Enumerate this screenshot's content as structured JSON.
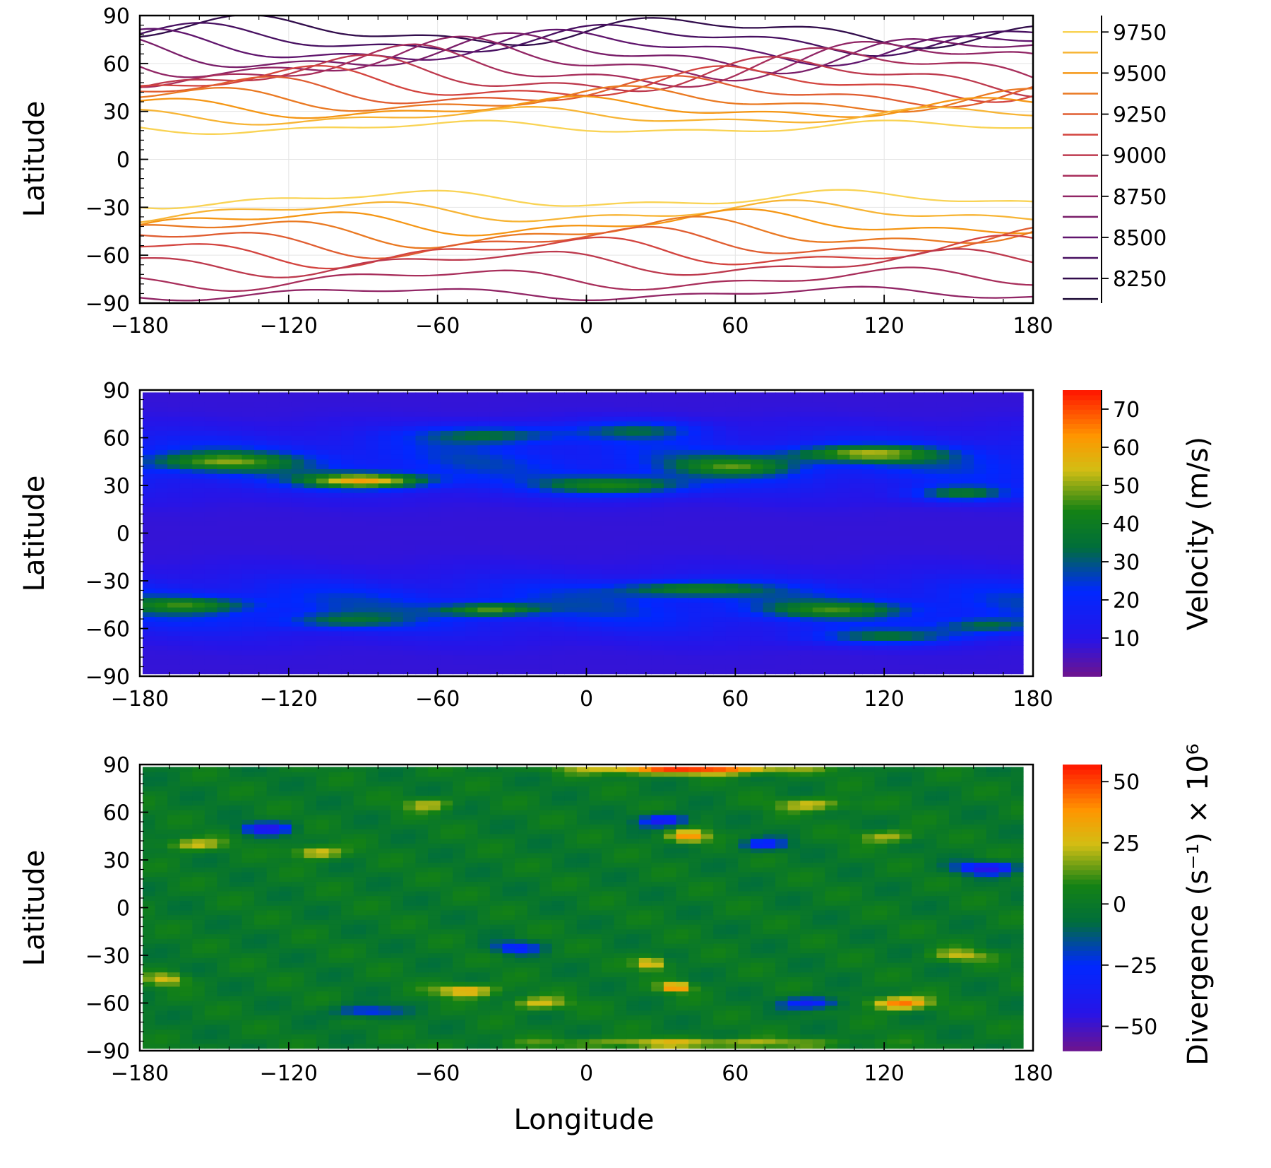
{
  "chart_data": [
    {
      "type": "contour",
      "title": "",
      "xlabel": "",
      "ylabel": "Latitude",
      "xlim": [
        -180,
        180
      ],
      "ylim": [
        -90,
        90
      ],
      "xticks": [
        -180,
        -120,
        -60,
        0,
        60,
        120,
        180
      ],
      "yticks": [
        -90,
        -60,
        -30,
        0,
        30,
        60,
        90
      ],
      "colorbar": {
        "label": "",
        "ticks": [
          8250,
          8500,
          8750,
          9000,
          9250,
          9500,
          9750
        ],
        "levels": [
          8125,
          8250,
          8375,
          8500,
          8625,
          8750,
          8875,
          9000,
          9125,
          9250,
          9375,
          9500,
          9625,
          9750
        ],
        "range": [
          8100,
          9850
        ]
      },
      "bands": [
        {
          "lat": 80,
          "amp": 7,
          "value": 8250
        },
        {
          "lat": 75,
          "amp": 7,
          "value": 8375
        },
        {
          "lat": 70,
          "amp": 8,
          "value": 8500
        },
        {
          "lat": 66,
          "amp": 9,
          "value": 8625
        },
        {
          "lat": 62,
          "amp": 10,
          "value": 8750
        },
        {
          "lat": 57,
          "amp": 10,
          "value": 8875
        },
        {
          "lat": 52,
          "amp": 9,
          "value": 9000
        },
        {
          "lat": 47,
          "amp": 8,
          "value": 9125
        },
        {
          "lat": 42,
          "amp": 7,
          "value": 9250
        },
        {
          "lat": 37,
          "amp": 6,
          "value": 9375
        },
        {
          "lat": 32,
          "amp": 5,
          "value": 9500
        },
        {
          "lat": 27,
          "amp": 4,
          "value": 9625
        },
        {
          "lat": 20,
          "amp": 3,
          "value": 9750
        },
        {
          "lat": -25,
          "amp": 4,
          "value": 9750
        },
        {
          "lat": -33,
          "amp": 5,
          "value": 9625
        },
        {
          "lat": -40,
          "amp": 6,
          "value": 9500
        },
        {
          "lat": -46,
          "amp": 7,
          "value": 9375
        },
        {
          "lat": -52,
          "amp": 7,
          "value": 9250
        },
        {
          "lat": -58,
          "amp": 7,
          "value": 9125
        },
        {
          "lat": -65,
          "amp": 6,
          "value": 9000
        },
        {
          "lat": -75,
          "amp": 5,
          "value": 8875
        },
        {
          "lat": -84,
          "amp": 3,
          "value": 8750
        }
      ]
    },
    {
      "type": "heatmap",
      "title": "",
      "xlabel": "",
      "ylabel": "Latitude",
      "xlim": [
        -180,
        180
      ],
      "ylim": [
        -90,
        90
      ],
      "xticks": [
        -180,
        -120,
        -60,
        0,
        60,
        120,
        180
      ],
      "yticks": [
        -90,
        -60,
        -30,
        0,
        30,
        60,
        90
      ],
      "colorbar": {
        "label": "Velocity (m/s)",
        "ticks": [
          10,
          20,
          30,
          40,
          50,
          60,
          70
        ],
        "range": [
          0,
          75
        ]
      },
      "features": [
        {
          "lon": -90,
          "lat": 33,
          "slon": 25,
          "slat": 5,
          "value": 45
        },
        {
          "lon": 10,
          "lat": 30,
          "slon": 30,
          "slat": 6,
          "value": 30
        },
        {
          "lon": 110,
          "lat": 50,
          "slon": 30,
          "slat": 5,
          "value": 30
        },
        {
          "lon": 60,
          "lat": 42,
          "slon": 25,
          "slat": 6,
          "value": 22
        },
        {
          "lon": -40,
          "lat": 62,
          "slon": 30,
          "slat": 6,
          "value": 22
        },
        {
          "lon": 20,
          "lat": 65,
          "slon": 25,
          "slat": 6,
          "value": 20
        },
        {
          "lon": -150,
          "lat": 45,
          "slon": 30,
          "slat": 6,
          "value": 25
        },
        {
          "lon": 150,
          "lat": 25,
          "slon": 20,
          "slat": 5,
          "value": 25
        },
        {
          "lon": -40,
          "lat": -48,
          "slon": 20,
          "slat": 4,
          "value": 30
        },
        {
          "lon": 40,
          "lat": -35,
          "slon": 30,
          "slat": 5,
          "value": 25
        },
        {
          "lon": 100,
          "lat": -48,
          "slon": 30,
          "slat": 5,
          "value": 20
        },
        {
          "lon": -160,
          "lat": -45,
          "slon": 25,
          "slat": 5,
          "value": 22
        },
        {
          "lon": 160,
          "lat": -58,
          "slon": 20,
          "slat": 5,
          "value": 20
        },
        {
          "lon": 120,
          "lat": -65,
          "slon": 30,
          "slat": 5,
          "value": 22
        },
        {
          "lon": -100,
          "lat": -55,
          "slon": 25,
          "slat": 5,
          "value": 18
        }
      ]
    },
    {
      "type": "heatmap",
      "title": "",
      "xlabel": "Longitude",
      "ylabel": "Latitude",
      "xlim": [
        -180,
        180
      ],
      "ylim": [
        -90,
        90
      ],
      "xticks": [
        -180,
        -120,
        -60,
        0,
        60,
        120,
        180
      ],
      "yticks": [
        -90,
        -60,
        -30,
        0,
        30,
        60,
        90
      ],
      "colorbar": {
        "label": "Divergence (s⁻¹) × 10⁶",
        "ticks": [
          50,
          25,
          0,
          -25,
          -50
        ],
        "range": [
          -60,
          57
        ]
      },
      "features": [
        {
          "lon": 40,
          "lat": 87,
          "slon": 40,
          "slat": 3,
          "value": 50
        },
        {
          "lon": 40,
          "lat": -85,
          "slon": 60,
          "slat": 3,
          "value": 25
        },
        {
          "lon": 40,
          "lat": 45,
          "slon": 8,
          "slat": 4,
          "value": 40
        },
        {
          "lon": 125,
          "lat": -60,
          "slon": 12,
          "slat": 4,
          "value": 45
        },
        {
          "lon": 35,
          "lat": -50,
          "slon": 6,
          "slat": 3,
          "value": 45
        },
        {
          "lon": -50,
          "lat": -52,
          "slon": 12,
          "slat": 4,
          "value": 35
        },
        {
          "lon": 25,
          "lat": -35,
          "slon": 6,
          "slat": 4,
          "value": 35
        },
        {
          "lon": -110,
          "lat": 35,
          "slon": 10,
          "slat": 4,
          "value": 30
        },
        {
          "lon": -160,
          "lat": 40,
          "slon": 12,
          "slat": 4,
          "value": 25
        },
        {
          "lon": 90,
          "lat": 65,
          "slon": 15,
          "slat": 4,
          "value": 25
        },
        {
          "lon": -65,
          "lat": 65,
          "slon": 10,
          "slat": 4,
          "value": 22
        },
        {
          "lon": 120,
          "lat": 45,
          "slon": 12,
          "slat": 4,
          "value": 22
        },
        {
          "lon": -20,
          "lat": -60,
          "slon": 12,
          "slat": 4,
          "value": 25
        },
        {
          "lon": -170,
          "lat": -45,
          "slon": 8,
          "slat": 4,
          "value": 25
        },
        {
          "lon": 150,
          "lat": -30,
          "slon": 12,
          "slat": 4,
          "value": 22
        },
        {
          "lon": 30,
          "lat": 55,
          "slon": 10,
          "slat": 4,
          "value": -40
        },
        {
          "lon": -130,
          "lat": 50,
          "slon": 10,
          "slat": 4,
          "value": -40
        },
        {
          "lon": 160,
          "lat": 25,
          "slon": 12,
          "slat": 4,
          "value": -45
        },
        {
          "lon": -30,
          "lat": -25,
          "slon": 10,
          "slat": 4,
          "value": -30
        },
        {
          "lon": 90,
          "lat": -60,
          "slon": 12,
          "slat": 4,
          "value": -35
        },
        {
          "lon": 70,
          "lat": 40,
          "slon": 10,
          "slat": 4,
          "value": -30
        },
        {
          "lon": -90,
          "lat": -65,
          "slon": 12,
          "slat": 4,
          "value": -30
        }
      ]
    }
  ],
  "colors": {
    "axis": "#000000",
    "grid": "#e4e4e4"
  }
}
